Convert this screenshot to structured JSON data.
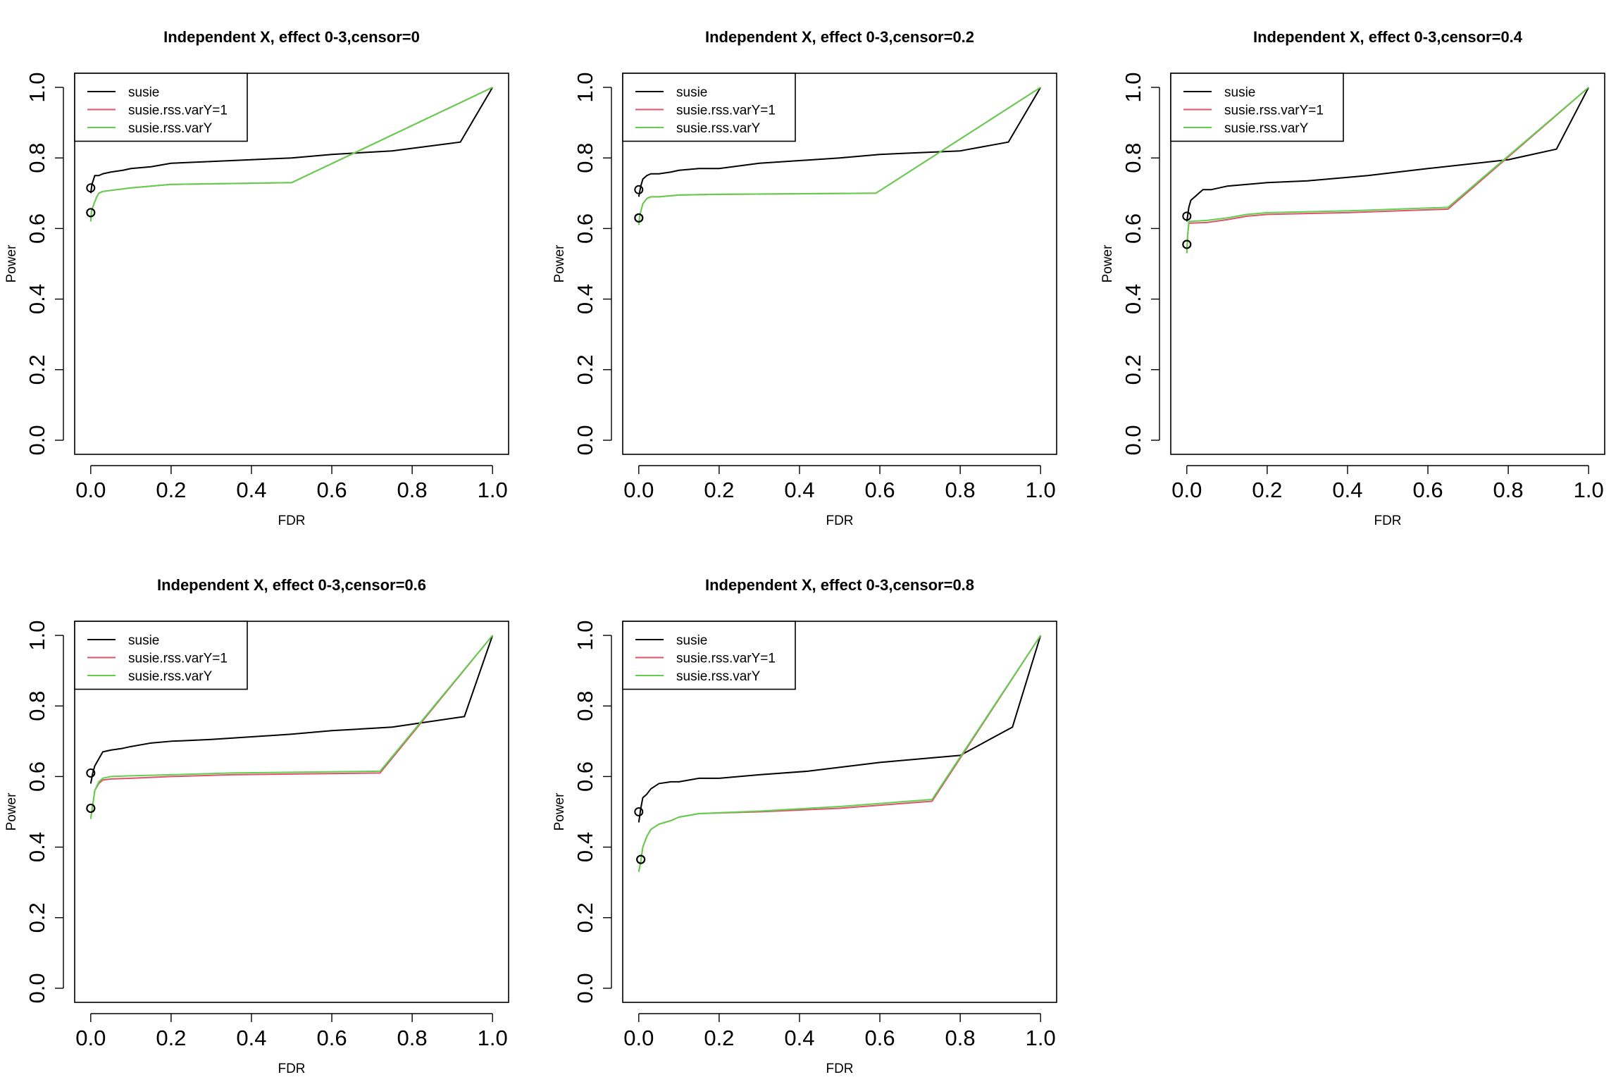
{
  "figure": {
    "colors": {
      "susie": "#000000",
      "susie.rss.varY=1": "#DF536B",
      "susie.rss.varY": "#61D04F"
    }
  },
  "chart_data": [
    {
      "type": "line",
      "title": "Independent X, effect 0-3,censor=0",
      "xlabel": "FDR",
      "ylabel": "Power",
      "xlim": [
        0,
        1
      ],
      "ylim": [
        0,
        1
      ],
      "xticks": [
        "0.0",
        "0.2",
        "0.4",
        "0.6",
        "0.8",
        "1.0"
      ],
      "yticks": [
        "0.0",
        "0.2",
        "0.4",
        "0.6",
        "0.8",
        "1.0"
      ],
      "legend_position": "top-left",
      "grid": false,
      "series": [
        {
          "name": "susie",
          "color": "#000000",
          "x": [
            0,
            0.003,
            0.01,
            0.02,
            0.03,
            0.05,
            0.08,
            0.1,
            0.15,
            0.2,
            0.3,
            0.5,
            0.6,
            0.75,
            0.92,
            1.0
          ],
          "y": [
            0.7,
            0.725,
            0.75,
            0.75,
            0.755,
            0.76,
            0.765,
            0.77,
            0.775,
            0.785,
            0.79,
            0.8,
            0.81,
            0.82,
            0.845,
            1.0
          ],
          "marker": {
            "x": 0,
            "y": 0.715
          }
        },
        {
          "name": "susie.rss.varY=1",
          "color": "#DF536B",
          "x": [
            0,
            0.002,
            0.008,
            0.015,
            0.02,
            0.03,
            0.05,
            0.1,
            0.2,
            0.5,
            1.0
          ],
          "y": [
            0.62,
            0.65,
            0.67,
            0.69,
            0.7,
            0.705,
            0.708,
            0.715,
            0.725,
            0.73,
            1.0
          ],
          "marker": {
            "x": 0,
            "y": 0.645
          }
        },
        {
          "name": "susie.rss.varY",
          "color": "#61D04F",
          "x": [
            0,
            0.002,
            0.008,
            0.015,
            0.02,
            0.03,
            0.05,
            0.1,
            0.2,
            0.5,
            1.0
          ],
          "y": [
            0.62,
            0.65,
            0.67,
            0.69,
            0.7,
            0.705,
            0.708,
            0.715,
            0.725,
            0.73,
            1.0
          ],
          "marker": {
            "x": 0,
            "y": 0.645
          }
        }
      ]
    },
    {
      "type": "line",
      "title": "Independent X, effect 0-3,censor=0.2",
      "xlabel": "FDR",
      "ylabel": "Power",
      "xlim": [
        0,
        1
      ],
      "ylim": [
        0,
        1
      ],
      "xticks": [
        "0.0",
        "0.2",
        "0.4",
        "0.6",
        "0.8",
        "1.0"
      ],
      "yticks": [
        "0.0",
        "0.2",
        "0.4",
        "0.6",
        "0.8",
        "1.0"
      ],
      "legend_position": "top-left",
      "grid": false,
      "series": [
        {
          "name": "susie",
          "color": "#000000",
          "x": [
            0,
            0.005,
            0.01,
            0.02,
            0.03,
            0.05,
            0.08,
            0.1,
            0.15,
            0.2,
            0.3,
            0.5,
            0.6,
            0.8,
            0.92,
            1.0
          ],
          "y": [
            0.69,
            0.72,
            0.74,
            0.75,
            0.755,
            0.755,
            0.76,
            0.765,
            0.77,
            0.77,
            0.785,
            0.8,
            0.81,
            0.82,
            0.845,
            1.0
          ],
          "marker": {
            "x": 0,
            "y": 0.71
          }
        },
        {
          "name": "susie.rss.varY=1",
          "color": "#DF536B",
          "x": [
            0,
            0.003,
            0.01,
            0.02,
            0.03,
            0.05,
            0.1,
            0.2,
            0.59,
            1.0
          ],
          "y": [
            0.61,
            0.64,
            0.67,
            0.685,
            0.69,
            0.69,
            0.695,
            0.697,
            0.7,
            1.0
          ],
          "marker": {
            "x": 0,
            "y": 0.63
          }
        },
        {
          "name": "susie.rss.varY",
          "color": "#61D04F",
          "x": [
            0,
            0.003,
            0.01,
            0.02,
            0.03,
            0.05,
            0.1,
            0.2,
            0.59,
            1.0
          ],
          "y": [
            0.61,
            0.64,
            0.67,
            0.685,
            0.69,
            0.69,
            0.695,
            0.697,
            0.7,
            1.0
          ],
          "marker": {
            "x": 0,
            "y": 0.63
          }
        }
      ]
    },
    {
      "type": "line",
      "title": "Independent X, effect 0-3,censor=0.4",
      "xlabel": "FDR",
      "ylabel": "Power",
      "xlim": [
        0,
        1
      ],
      "ylim": [
        0,
        1
      ],
      "xticks": [
        "0.0",
        "0.2",
        "0.4",
        "0.6",
        "0.8",
        "1.0"
      ],
      "yticks": [
        "0.0",
        "0.2",
        "0.4",
        "0.6",
        "0.8",
        "1.0"
      ],
      "legend_position": "top-left",
      "grid": false,
      "series": [
        {
          "name": "susie",
          "color": "#000000",
          "x": [
            0,
            0.005,
            0.01,
            0.02,
            0.03,
            0.04,
            0.06,
            0.1,
            0.15,
            0.2,
            0.3,
            0.45,
            0.6,
            0.8,
            0.92,
            1.0
          ],
          "y": [
            0.62,
            0.66,
            0.68,
            0.69,
            0.7,
            0.71,
            0.71,
            0.72,
            0.725,
            0.73,
            0.735,
            0.75,
            0.77,
            0.795,
            0.825,
            1.0
          ],
          "marker": {
            "x": 0,
            "y": 0.635
          }
        },
        {
          "name": "susie.rss.varY=1",
          "color": "#DF536B",
          "x": [
            0,
            0.002,
            0.005,
            0.05,
            0.1,
            0.15,
            0.2,
            0.4,
            0.65,
            1.0
          ],
          "y": [
            0.53,
            0.58,
            0.615,
            0.617,
            0.625,
            0.635,
            0.64,
            0.645,
            0.655,
            1.0
          ],
          "marker": {
            "x": 0,
            "y": 0.555
          }
        },
        {
          "name": "susie.rss.varY",
          "color": "#61D04F",
          "x": [
            0,
            0.002,
            0.005,
            0.05,
            0.1,
            0.15,
            0.2,
            0.4,
            0.65,
            1.0
          ],
          "y": [
            0.53,
            0.58,
            0.62,
            0.623,
            0.63,
            0.64,
            0.645,
            0.65,
            0.66,
            1.0
          ],
          "marker": {
            "x": 0,
            "y": 0.555
          }
        }
      ]
    },
    {
      "type": "line",
      "title": "Independent X, effect 0-3,censor=0.6",
      "xlabel": "FDR",
      "ylabel": "Power",
      "xlim": [
        0,
        1
      ],
      "ylim": [
        0,
        1
      ],
      "xticks": [
        "0.0",
        "0.2",
        "0.4",
        "0.6",
        "0.8",
        "1.0"
      ],
      "yticks": [
        "0.0",
        "0.2",
        "0.4",
        "0.6",
        "0.8",
        "1.0"
      ],
      "legend_position": "top-left",
      "grid": false,
      "series": [
        {
          "name": "susie",
          "color": "#000000",
          "x": [
            0,
            0.005,
            0.01,
            0.02,
            0.03,
            0.05,
            0.08,
            0.1,
            0.15,
            0.2,
            0.3,
            0.5,
            0.6,
            0.75,
            0.93,
            1.0
          ],
          "y": [
            0.58,
            0.61,
            0.63,
            0.65,
            0.67,
            0.675,
            0.68,
            0.685,
            0.695,
            0.7,
            0.705,
            0.72,
            0.73,
            0.74,
            0.77,
            1.0
          ],
          "marker": {
            "x": 0,
            "y": 0.61
          }
        },
        {
          "name": "susie.rss.varY=1",
          "color": "#DF536B",
          "x": [
            0,
            0.005,
            0.01,
            0.02,
            0.03,
            0.05,
            0.1,
            0.2,
            0.35,
            0.72,
            1.0
          ],
          "y": [
            0.48,
            0.52,
            0.56,
            0.58,
            0.59,
            0.593,
            0.595,
            0.6,
            0.605,
            0.61,
            1.0
          ],
          "marker": {
            "x": 0,
            "y": 0.51
          }
        },
        {
          "name": "susie.rss.varY",
          "color": "#61D04F",
          "x": [
            0,
            0.005,
            0.01,
            0.02,
            0.03,
            0.05,
            0.1,
            0.2,
            0.35,
            0.72,
            1.0
          ],
          "y": [
            0.48,
            0.52,
            0.56,
            0.585,
            0.595,
            0.6,
            0.602,
            0.605,
            0.61,
            0.615,
            1.0
          ],
          "marker": {
            "x": 0,
            "y": 0.51
          }
        }
      ]
    },
    {
      "type": "line",
      "title": "Independent X, effect 0-3,censor=0.8",
      "xlabel": "FDR",
      "ylabel": "Power",
      "xlim": [
        0,
        1
      ],
      "ylim": [
        0,
        1
      ],
      "xticks": [
        "0.0",
        "0.2",
        "0.4",
        "0.6",
        "0.8",
        "1.0"
      ],
      "yticks": [
        "0.0",
        "0.2",
        "0.4",
        "0.6",
        "0.8",
        "1.0"
      ],
      "legend_position": "top-left",
      "grid": false,
      "series": [
        {
          "name": "susie",
          "color": "#000000",
          "x": [
            0,
            0.005,
            0.01,
            0.02,
            0.03,
            0.05,
            0.08,
            0.1,
            0.15,
            0.2,
            0.3,
            0.42,
            0.6,
            0.8,
            0.93,
            1.0
          ],
          "y": [
            0.47,
            0.51,
            0.54,
            0.55,
            0.565,
            0.58,
            0.585,
            0.585,
            0.595,
            0.595,
            0.605,
            0.615,
            0.64,
            0.66,
            0.74,
            1.0
          ],
          "marker": {
            "x": 0,
            "y": 0.5
          }
        },
        {
          "name": "susie.rss.varY=1",
          "color": "#DF536B",
          "x": [
            0,
            0.005,
            0.01,
            0.02,
            0.03,
            0.05,
            0.08,
            0.1,
            0.15,
            0.3,
            0.5,
            0.73,
            1.0
          ],
          "y": [
            0.33,
            0.36,
            0.4,
            0.43,
            0.45,
            0.465,
            0.475,
            0.485,
            0.495,
            0.5,
            0.51,
            0.53,
            1.0
          ],
          "marker": {
            "x": 0.005,
            "y": 0.365
          }
        },
        {
          "name": "susie.rss.varY",
          "color": "#61D04F",
          "x": [
            0,
            0.005,
            0.01,
            0.02,
            0.03,
            0.05,
            0.08,
            0.1,
            0.15,
            0.3,
            0.5,
            0.73,
            1.0
          ],
          "y": [
            0.33,
            0.36,
            0.4,
            0.43,
            0.45,
            0.465,
            0.475,
            0.485,
            0.495,
            0.502,
            0.515,
            0.535,
            1.0
          ],
          "marker": {
            "x": 0.005,
            "y": 0.365
          }
        }
      ]
    }
  ]
}
